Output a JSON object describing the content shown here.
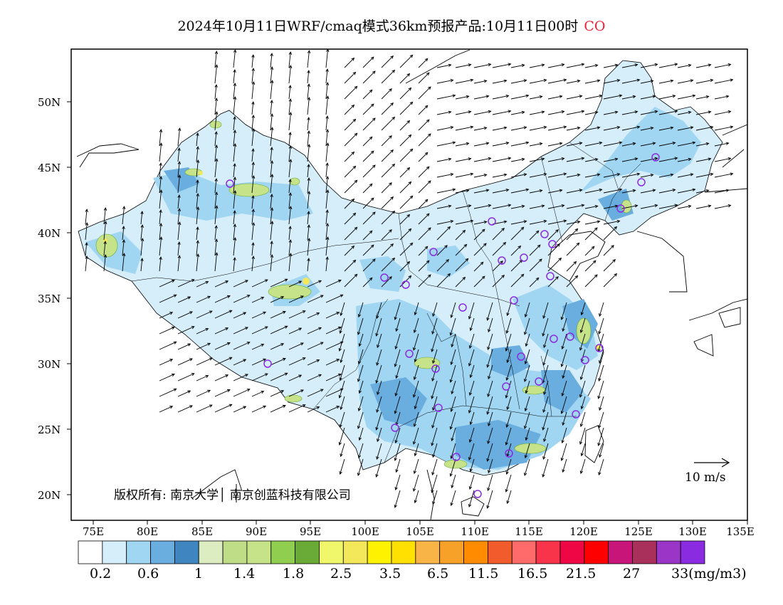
{
  "title": {
    "main": "2024年10月11日WRF/cmaq模式36km预报产品:10月11日00时",
    "species": "CO"
  },
  "axes": {
    "lat_labels": [
      "50N",
      "45N",
      "40N",
      "35N",
      "30N",
      "25N",
      "20N"
    ],
    "lon_labels": [
      "75E",
      "80E",
      "85E",
      "90E",
      "95E",
      "100E",
      "105E",
      "110E",
      "115E",
      "120E",
      "125E",
      "130E",
      "135E"
    ]
  },
  "copyright": "版权所有: 南京大学│ 南京创蓝科技有限公司",
  "wind_scale": {
    "label": "10 m/s"
  },
  "colorbar": {
    "colors": [
      "#ffffff",
      "#d6eefa",
      "#a0d6f2",
      "#6aaee0",
      "#3f85c0",
      "#dcedc1",
      "#bfdc87",
      "#c7e38a",
      "#8fce4f",
      "#6aaa36",
      "#f0f76a",
      "#f3e85a",
      "#fff200",
      "#ffe000",
      "#f9b448",
      "#f7a128",
      "#ff8c00",
      "#f25c2c",
      "#ff6a6a",
      "#f7344a",
      "#ee0645",
      "#ff0000",
      "#c8157a",
      "#a8305a",
      "#9b35c8",
      "#8a2be2"
    ],
    "labels": [
      "0.2",
      "0.6",
      "1",
      "1.4",
      "1.8",
      "2.5",
      "3.5",
      "6.5",
      "11.5",
      "16.5",
      "21.5",
      "27",
      "33(mg/m3)"
    ]
  },
  "stations_color": "#8a2be2"
}
